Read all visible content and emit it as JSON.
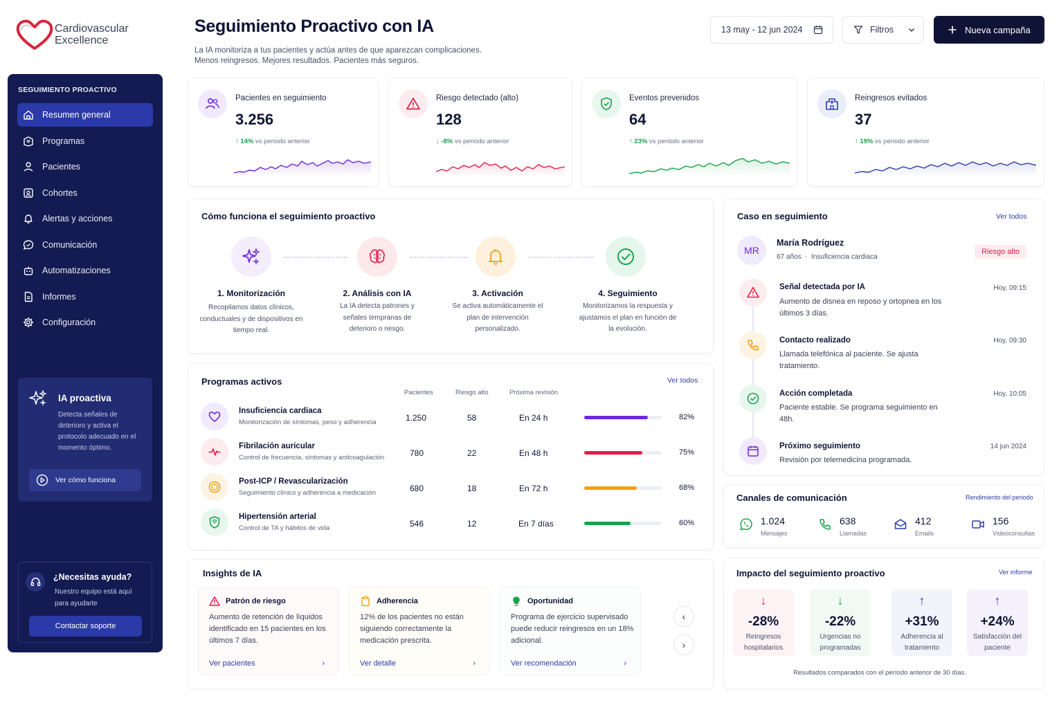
{
  "brand": {
    "line1": "Cardiovascular",
    "line2": "Excellence"
  },
  "sidebar": {
    "section": "SEGUIMIENTO PROACTIVO",
    "items": [
      {
        "label": "Resumen general",
        "icon": "home-icon",
        "active": true
      },
      {
        "label": "Programas",
        "icon": "programs-icon"
      },
      {
        "label": "Pacientes",
        "icon": "user-icon"
      },
      {
        "label": "Cohortes",
        "icon": "cohorts-icon"
      },
      {
        "label": "Alertas y acciones",
        "icon": "bell-icon"
      },
      {
        "label": "Comunicación",
        "icon": "chat-icon"
      },
      {
        "label": "Automatizaciones",
        "icon": "robot-icon"
      },
      {
        "label": "Informes",
        "icon": "report-icon"
      },
      {
        "label": "Configuración",
        "icon": "gear-icon"
      }
    ],
    "ia_card": {
      "title": "IA proactiva",
      "desc": "Detecta señales de deterioro y activa el protocolo adecuado en el momento óptimo.",
      "button": "Ver cómo funciona"
    },
    "help": {
      "title": "¿Necesitas ayuda?",
      "desc": "Nuestro equipo está aquí para ayudarte",
      "button": "Contactar soporte"
    }
  },
  "header": {
    "title": "Seguimiento Proactivo con IA",
    "subtitle1": "La IA monitoriza a tus pacientes y actúa antes de que aparezcan complicaciones.",
    "subtitle2": "Menos reingresos. Mejores resultados. Pacientes más seguros.",
    "date_range": "13 may - 12 jun 2024",
    "filters": "Filtros",
    "new_campaign": "Nueva campaña"
  },
  "kpis": [
    {
      "label": "Pacientes en seguimiento",
      "value": "3.256",
      "delta": "↑ 14%",
      "delta_text": "vs periodo anterior",
      "color": "#6d28d9",
      "trend": "up"
    },
    {
      "label": "Riesgo detectado (alto)",
      "value": "128",
      "delta": "↓ -8%",
      "delta_text": "vs periodo anterior",
      "color": "#e11d48",
      "trend": "down"
    },
    {
      "label": "Eventos prevenidos",
      "value": "64",
      "delta": "↑ 23%",
      "delta_text": "vs periodo anterior",
      "color": "#16a34a",
      "trend": "up"
    },
    {
      "label": "Reingresos evitados",
      "value": "37",
      "delta": "↑ 19%",
      "delta_text": "vs periodo anterior",
      "color": "#2b3aa8",
      "trend": "up"
    }
  ],
  "how": {
    "title": "Cómo funciona el seguimiento proactivo",
    "steps": [
      {
        "title": "1. Monitorización",
        "desc": "Recopilamos datos clínicos, conductuales y de dispositivos en tiempo real.",
        "icon": "sparkles-icon"
      },
      {
        "title": "2. Análisis con IA",
        "desc": "La IA detecta patrones y señales tempranas de deterioro o riesgo.",
        "icon": "brain-icon"
      },
      {
        "title": "3. Activación",
        "desc": "Se activa automáticamente el plan de intervención personalizado.",
        "icon": "bell-icon"
      },
      {
        "title": "4. Seguimiento",
        "desc": "Monitorizamos la respuesta y ajustamos el plan en función de la evolución.",
        "icon": "check-circle-icon"
      }
    ]
  },
  "programs": {
    "title": "Programas activos",
    "link": "Ver todos",
    "headers": {
      "patients": "Pacientes",
      "risk": "Riesgo alto",
      "next": "Próxima revisión"
    },
    "rows": [
      {
        "name": "Insuficiencia cardiaca",
        "sub": "Monitorización de síntomas, peso y adherencia",
        "patients": "1.250",
        "risk": "58",
        "next": "En 24 h",
        "pct": "82%",
        "pct_value": 82,
        "color": "#6d28d9",
        "bg": "#f1eafe",
        "icon": "heart-icon"
      },
      {
        "name": "Fibrilación auricular",
        "sub": "Control de frecuencia, síntomas y anticoagulación",
        "patients": "780",
        "risk": "22",
        "next": "En 48 h",
        "pct": "75%",
        "pct_value": 75,
        "color": "#e11d48",
        "bg": "#fdecef",
        "icon": "pulse-icon"
      },
      {
        "name": "Post-ICP / Revascularización",
        "sub": "Seguimiento clínico y adherencia a medicación",
        "patients": "680",
        "risk": "18",
        "next": "En 72 h",
        "pct": "68%",
        "pct_value": 68,
        "color": "#f59e0b",
        "bg": "#fdf3e3",
        "icon": "dial-icon"
      },
      {
        "name": "Hipertensión arterial",
        "sub": "Control de TA y hábitos de vida",
        "patients": "546",
        "risk": "12",
        "next": "En 7 días",
        "pct": "60%",
        "pct_value": 60,
        "color": "#16a34a",
        "bg": "#e8f7ee",
        "icon": "shield-icon"
      }
    ]
  },
  "insights": {
    "title": "Insights de IA",
    "cards": [
      {
        "title": "Patrón de riesgo",
        "body": "Aumento de retención de líquidos identificado en 15 pacientes en los últimos 7 días.",
        "action": "Ver pacientes",
        "icon": "warning-icon",
        "color": "#e11d48",
        "bg": "#fffafa"
      },
      {
        "title": "Adherencia",
        "body": "12% de los pacientes no están siguiendo correctamente la medicación prescrita.",
        "action": "Ver detalle",
        "icon": "clipboard-icon",
        "color": "#f59e0b",
        "bg": "#fffdf8"
      },
      {
        "title": "Oportunidad",
        "body": "Programa de ejercicio supervisado puede reducir reingresos en un 18% adicional.",
        "action": "Ver recomendación",
        "icon": "bulb-icon",
        "color": "#16a34a",
        "bg": "#fbfefc"
      }
    ]
  },
  "case": {
    "title": "Caso en seguimiento",
    "link": "Ver todos",
    "initials": "MR",
    "name": "María Rodríguez",
    "age": "67 años",
    "condition": "Insuficiencia cardiaca",
    "risk_badge": "Riesgo alto",
    "events": [
      {
        "title": "Señal detectada por IA",
        "desc": "Aumento de disnea en reposo y ortopnea en los últimos 3 días.",
        "time": "Hoy, 09:15",
        "icon": "warning-icon",
        "color": "#e11d48",
        "bg": "#fdecef"
      },
      {
        "title": "Contacto realizado",
        "desc": "Llamada telefónica al paciente. Se ajusta tratamiento.",
        "time": "Hoy, 09:30",
        "icon": "phone-icon",
        "color": "#f59e0b",
        "bg": "#fdf3e3"
      },
      {
        "title": "Acción completada",
        "desc": "Paciente estable. Se programa seguimiento en 48h.",
        "time": "Hoy, 10:05",
        "icon": "check-circle-icon",
        "color": "#16a34a",
        "bg": "#e8f7ee"
      },
      {
        "title": "Próximo seguimiento",
        "desc": "Revisión por telemedicina programada.",
        "time": "14 jun 2024",
        "icon": "calendar-icon",
        "color": "#6d28d9",
        "bg": "#f1eafe"
      }
    ]
  },
  "channels": {
    "title": "Canales de comunicación",
    "link": "Rendimiento del periodo",
    "items": [
      {
        "value": "1.024",
        "label": "Mensajes",
        "icon": "whatsapp-icon",
        "color": "#16a34a"
      },
      {
        "value": "638",
        "label": "Llamadas",
        "icon": "phone-icon",
        "color": "#16a34a"
      },
      {
        "value": "412",
        "label": "Emails",
        "icon": "mail-icon",
        "color": "#2b3aa8"
      },
      {
        "value": "156",
        "label": "Videoconsultas",
        "icon": "video-icon",
        "color": "#2b3aa8"
      }
    ]
  },
  "impact": {
    "title": "Impacto del seguimiento proactivo",
    "link": "Ver informe",
    "items": [
      {
        "value": "-28%",
        "label": "Reingresos hospitalarios",
        "arrow": "↓",
        "color": "#e11d48",
        "bg": "#fdf3f4"
      },
      {
        "value": "-22%",
        "label": "Urgencias no programadas",
        "arrow": "↓",
        "color": "#16a34a",
        "bg": "#f1f9f4"
      },
      {
        "value": "+31%",
        "label": "Adherencia al tratamiento",
        "arrow": "↑",
        "color": "#2b3aa8",
        "bg": "#f2f4fb"
      },
      {
        "value": "+24%",
        "label": "Satisfacción del paciente",
        "arrow": "↑",
        "color": "#6d28d9",
        "bg": "#f4f1fc"
      }
    ],
    "footnote": "Resultados comparados con el período anterior de 30 días."
  }
}
